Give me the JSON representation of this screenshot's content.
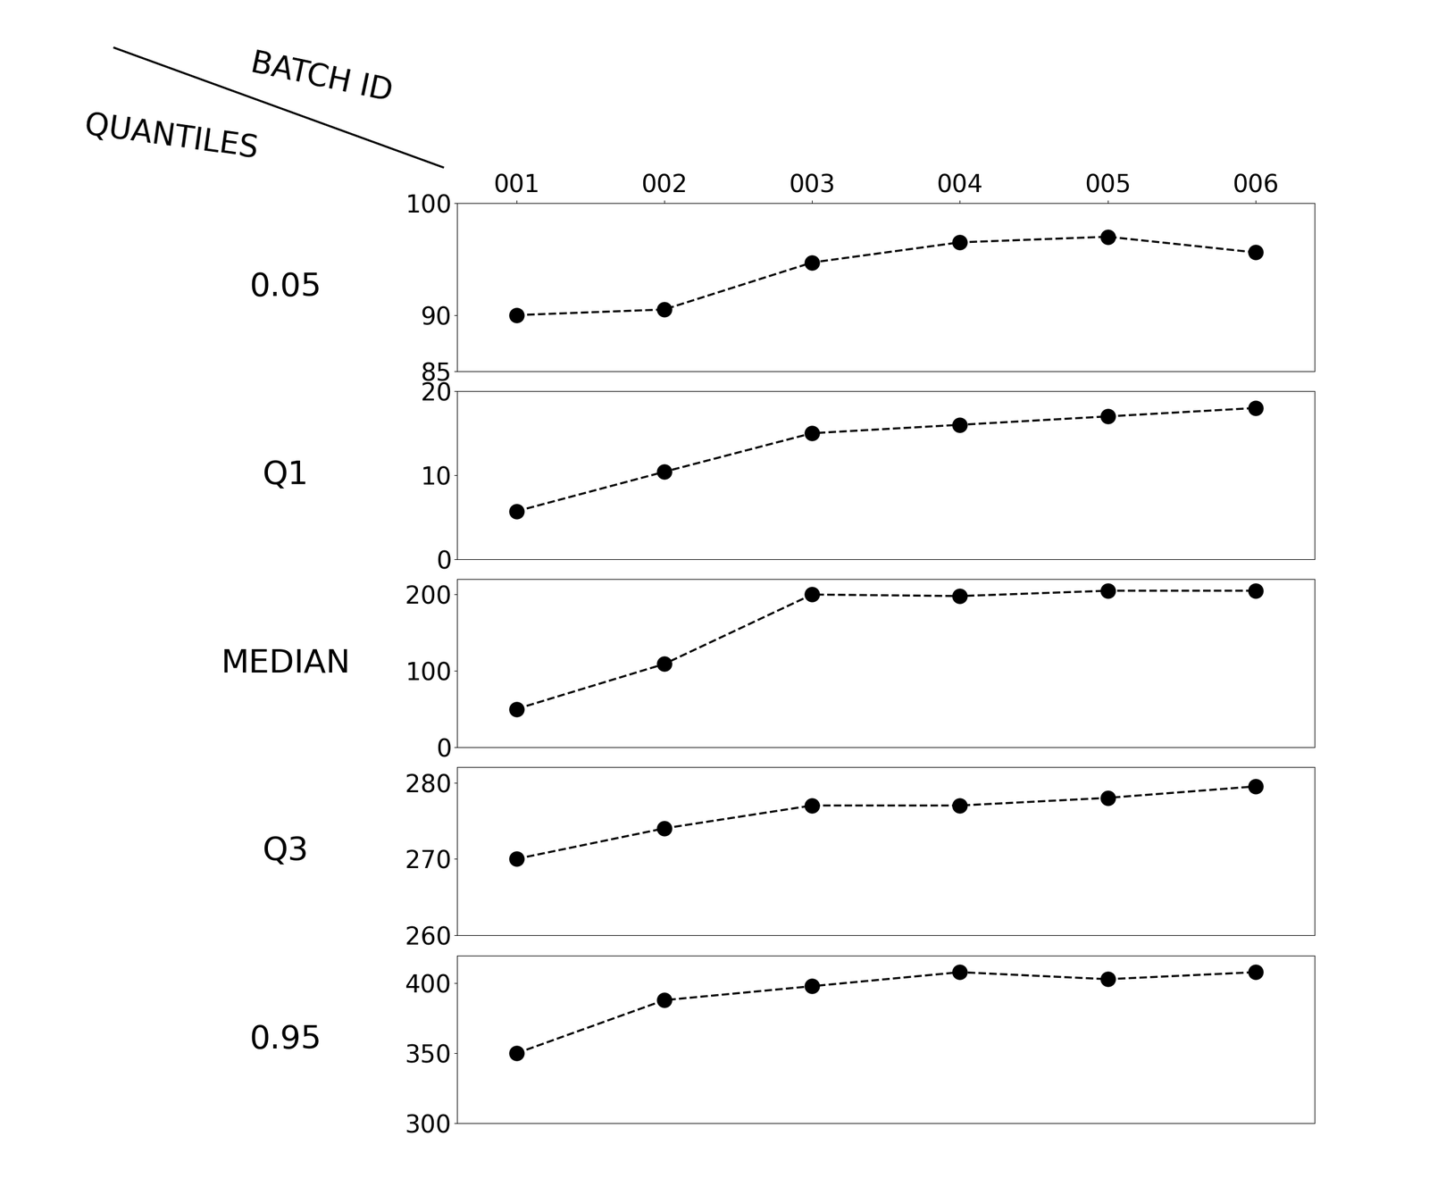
{
  "column_header": "BATCH ID",
  "row_header": "QUANTILES",
  "chart_data": [
    {
      "type": "line",
      "title": "0.05",
      "categories": [
        "001",
        "002",
        "003",
        "004",
        "005",
        "006"
      ],
      "values": [
        90,
        90.5,
        94.7,
        96.5,
        97,
        95.6
      ],
      "ylim": [
        85,
        100
      ],
      "yticks": [
        85,
        90,
        100
      ],
      "color": "#000000",
      "marker": "o",
      "line_style": "dashed",
      "tick_labels": true
    },
    {
      "type": "line",
      "title": "Q1",
      "categories": [
        "001",
        "002",
        "003",
        "004",
        "005",
        "006"
      ],
      "values": [
        5.7,
        10.4,
        15,
        16,
        17,
        18
      ],
      "ylim": [
        0,
        20
      ],
      "yticks": [
        0,
        10,
        20
      ],
      "color": "#000000",
      "marker": "o",
      "line_style": "dashed",
      "tick_labels": "y"
    },
    {
      "type": "line",
      "title": "MEDIAN",
      "categories": [
        "001",
        "002",
        "003",
        "004",
        "005",
        "006"
      ],
      "values": [
        50,
        109,
        200,
        198,
        205,
        205
      ],
      "ylim": [
        0,
        220
      ],
      "yticks": [
        0,
        100,
        200
      ],
      "color": "#000000",
      "marker": "o",
      "line_style": "dashed",
      "tick_labels": "y"
    },
    {
      "type": "line",
      "title": "Q3",
      "categories": [
        "001",
        "002",
        "003",
        "004",
        "005",
        "006"
      ],
      "values": [
        270,
        274,
        277,
        277,
        278,
        279.5
      ],
      "ylim": [
        260,
        282
      ],
      "yticks": [
        260,
        270,
        280
      ],
      "color": "#000000",
      "marker": "o",
      "line_style": "dashed",
      "tick_labels": "y"
    },
    {
      "type": "line",
      "title": "0.95",
      "categories": [
        "001",
        "002",
        "003",
        "004",
        "005",
        "006"
      ],
      "values": [
        350,
        388,
        398,
        408,
        403,
        408
      ],
      "ylim": [
        300,
        420
      ],
      "yticks": [
        300,
        350,
        400
      ],
      "color": "#000000",
      "marker": "o",
      "line_style": "dashed",
      "tick_labels": "y"
    }
  ]
}
